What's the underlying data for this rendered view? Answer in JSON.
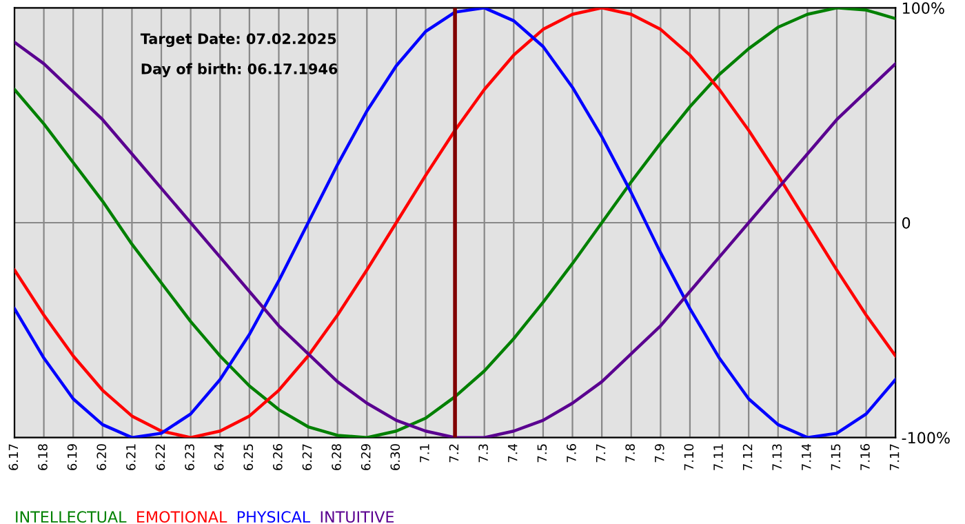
{
  "chart_data": {
    "type": "line",
    "categories": [
      "6.17",
      "6.18",
      "6.19",
      "6.20",
      "6.21",
      "6.22",
      "6.23",
      "6.24",
      "6.25",
      "6.26",
      "6.27",
      "6.28",
      "6.29",
      "6.30",
      "7.1",
      "7.2",
      "7.3",
      "7.4",
      "7.5",
      "7.6",
      "7.7",
      "7.8",
      "7.9",
      "7.10",
      "7.11",
      "7.12",
      "7.13",
      "7.14",
      "7.15",
      "7.16",
      "7.17"
    ],
    "series": [
      {
        "name": "INTELLECTUAL",
        "color": "#008000",
        "values": [
          62,
          46,
          28,
          10,
          -10,
          -28,
          -46,
          -62,
          -76,
          -87,
          -95,
          -99,
          -100,
          -97,
          -91,
          -81,
          -69,
          -54,
          -37,
          -19,
          0,
          19,
          37,
          54,
          69,
          81,
          91,
          97,
          100,
          99,
          95
        ]
      },
      {
        "name": "EMOTIONAL",
        "color": "#ff0000",
        "values": [
          -22,
          -43,
          -62,
          -78,
          -90,
          -97,
          -100,
          -97,
          -90,
          -78,
          -62,
          -43,
          -22,
          0,
          22,
          43,
          62,
          78,
          90,
          97,
          100,
          97,
          90,
          78,
          62,
          43,
          22,
          0,
          -22,
          -43,
          -62
        ]
      },
      {
        "name": "PHYSICAL",
        "color": "#0000ff",
        "values": [
          -40,
          -63,
          -82,
          -94,
          -100,
          -98,
          -89,
          -73,
          -52,
          -27,
          0,
          27,
          52,
          73,
          89,
          98,
          100,
          94,
          82,
          63,
          40,
          14,
          -14,
          -40,
          -63,
          -82,
          -94,
          -100,
          -98,
          -89,
          -73
        ]
      },
      {
        "name": "INTUITIVE",
        "color": "#5a0090",
        "values": [
          84,
          74,
          61,
          48,
          32,
          16,
          0,
          -16,
          -32,
          -48,
          -61,
          -74,
          -84,
          -92,
          -97,
          -100,
          -100,
          -97,
          -92,
          -84,
          -74,
          -61,
          -48,
          -32,
          -16,
          0,
          16,
          32,
          48,
          61,
          74
        ]
      }
    ],
    "ylim": [
      -100,
      100
    ],
    "yticks": [
      {
        "value": 100,
        "label": "100%"
      },
      0,
      {
        "value": -100,
        "label": "-100%"
      }
    ],
    "ref_lines": [
      {
        "axis": "x",
        "value": "7.2",
        "color": "#800000"
      }
    ],
    "annotations": [
      "Target Date: 07.02.2025",
      "Day of birth: 06.17.1946"
    ],
    "grid": true,
    "legend": "bottom",
    "marker": "none",
    "line_style": "solid"
  }
}
